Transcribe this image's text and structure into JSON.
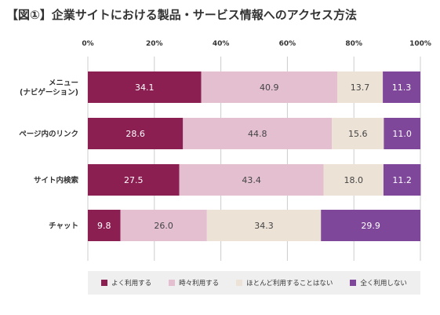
{
  "title": "【図①】企業サイトにおける製品・サービス情報へのアクセス方法",
  "colors": {
    "often": "#8c1f52",
    "sometimes": "#e3bfd0",
    "rarely": "#ece2d6",
    "never": "#7e479a",
    "grid": "#cccccc",
    "legend_bg": "#efefef"
  },
  "chart_data": {
    "type": "bar",
    "orientation": "horizontal",
    "stacked": true,
    "x_ticks": [
      "0%",
      "20%",
      "40%",
      "60%",
      "80%",
      "100%"
    ],
    "xlim": [
      0,
      100
    ],
    "categories": [
      "メニュー\n(ナビゲーション)",
      "ページ内のリンク",
      "サイト内検索",
      "チャット"
    ],
    "series": [
      {
        "name": "よく利用する",
        "color": "#8c1f52",
        "values": [
          34.1,
          28.6,
          27.5,
          9.8
        ]
      },
      {
        "name": "時々利用する",
        "color": "#e3bfd0",
        "values": [
          40.9,
          44.8,
          43.4,
          26.0
        ]
      },
      {
        "name": "ほとんど利用することはない",
        "color": "#ece2d6",
        "values": [
          13.7,
          15.6,
          18.0,
          34.3
        ]
      },
      {
        "name": "全く利用しない",
        "color": "#7e479a",
        "values": [
          11.3,
          11.0,
          11.2,
          29.9
        ]
      }
    ],
    "data_labels": [
      [
        "34.1",
        "40.9",
        "13.7",
        "11.3"
      ],
      [
        "28.6",
        "44.8",
        "15.6",
        "11.0"
      ],
      [
        "27.5",
        "43.4",
        "18.0",
        "11.2"
      ],
      [
        "9.8",
        "26.0",
        "34.3",
        "29.9"
      ]
    ],
    "grid": true,
    "legend": "bottom"
  }
}
